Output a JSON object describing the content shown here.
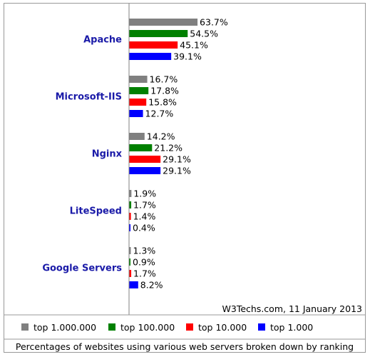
{
  "chart_data": {
    "type": "bar",
    "orientation": "horizontal",
    "categories": [
      "Apache",
      "Microsoft-IIS",
      "Nginx",
      "LiteSpeed",
      "Google Servers"
    ],
    "series": [
      {
        "name": "top 1.000.000",
        "color": "#808080",
        "values": [
          63.7,
          16.7,
          14.2,
          1.9,
          1.3
        ],
        "labels": [
          "63.7%",
          "16.7%",
          "14.2%",
          "1.9%",
          "1.3%"
        ]
      },
      {
        "name": "top 100.000",
        "color": "#008000",
        "values": [
          54.5,
          17.8,
          21.2,
          1.7,
          0.9
        ],
        "labels": [
          "54.5%",
          "17.8%",
          "21.2%",
          "1.7%",
          "0.9%"
        ]
      },
      {
        "name": "top 10.000",
        "color": "#ff0000",
        "values": [
          45.1,
          15.8,
          29.1,
          1.4,
          1.7
        ],
        "labels": [
          "45.1%",
          "15.8%",
          "29.1%",
          "1.4%",
          "1.7%"
        ]
      },
      {
        "name": "top 1.000",
        "color": "#0000ff",
        "values": [
          39.1,
          12.7,
          29.1,
          0.4,
          8.2
        ],
        "labels": [
          "39.1%",
          "12.7%",
          "29.1%",
          "0.4%",
          "8.2%"
        ]
      }
    ],
    "credit": "W3Techs.com, 11 January 2013",
    "caption": "Percentages of websites using various web servers broken down by ranking",
    "legend_position": "bottom",
    "grid": false,
    "xlim": [
      0,
      100
    ]
  },
  "colors": {
    "frame": "#999999",
    "axis": "#808080",
    "category_text": "#1a1aa8"
  }
}
